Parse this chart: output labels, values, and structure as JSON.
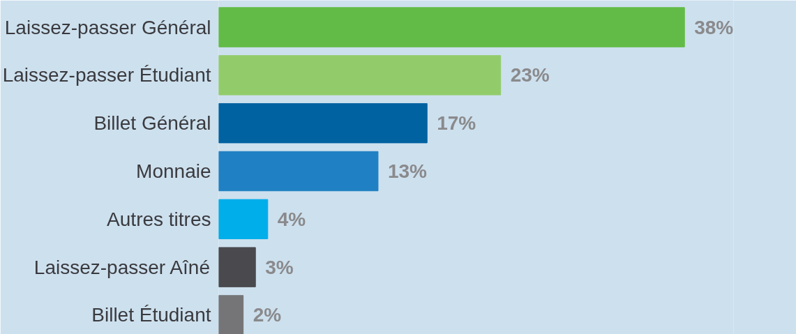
{
  "chart_data": {
    "type": "bar",
    "orientation": "horizontal",
    "categories": [
      "Laissez-passer Général",
      "Laissez-passer Étudiant",
      "Billet Général",
      "Monnaie",
      "Autres titres",
      "Laissez-passer Aîné",
      "Billet Étudiant"
    ],
    "values": [
      38,
      23,
      17,
      13,
      4,
      3,
      2
    ],
    "colors": [
      "#62bb46",
      "#92cc6a",
      "#0062a0",
      "#1f80c3",
      "#00aeea",
      "#4a4a4e",
      "#757577"
    ],
    "value_labels": [
      "38%",
      "23%",
      "17%",
      "13%",
      "4%",
      "3%",
      "2%"
    ],
    "xlim": [
      0,
      42
    ],
    "tick_labels": "y",
    "grid": false
  }
}
